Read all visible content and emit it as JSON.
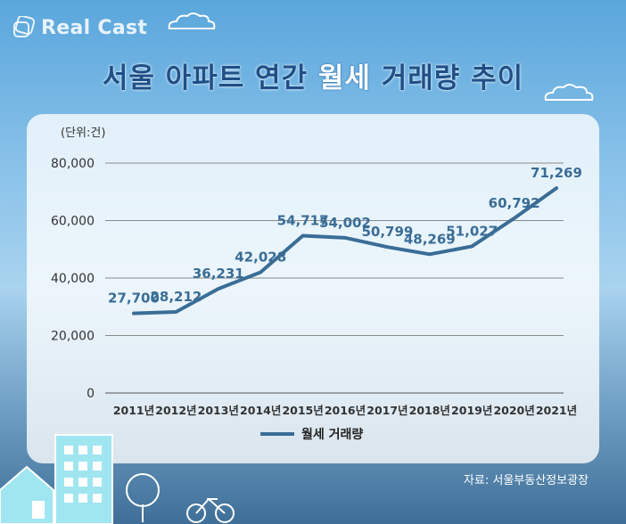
{
  "brand": {
    "logo_text": "Real Cast",
    "logo_icon": "realcast-logo-icon"
  },
  "title": {
    "part1": "서울 아파트 연간 ",
    "highlight": "월세",
    "part2": " 거래량 추이"
  },
  "unit_label": "(단위:건)",
  "source": "자료: 서울부동산정보광장",
  "colors": {
    "line": "#3a6d96",
    "title": "#1f4f87",
    "label": "#3a6d96"
  },
  "chart_data": {
    "type": "line",
    "categories": [
      "2011년",
      "2012년",
      "2013년",
      "2014년",
      "2015년",
      "2016년",
      "2017년",
      "2018년",
      "2019년",
      "2020년",
      "2021년"
    ],
    "series": [
      {
        "name": "월세 거래량",
        "values": [
          27700,
          28212,
          36231,
          42028,
          54717,
          54002,
          50799,
          48269,
          51027,
          60792,
          71269
        ]
      }
    ],
    "data_labels": [
      "27,700",
      "28,212",
      "36,231",
      "42,028",
      "54,717",
      "54,002",
      "50,799",
      "48,269",
      "51,027",
      "60,792",
      "71,269"
    ],
    "yticks": [
      "0",
      "20,000",
      "40,000",
      "60,000",
      "80,000"
    ],
    "ytick_values": [
      0,
      20000,
      40000,
      60000,
      80000
    ],
    "ylim": [
      0,
      80000
    ],
    "grid": true,
    "legend": "bottom-center"
  }
}
